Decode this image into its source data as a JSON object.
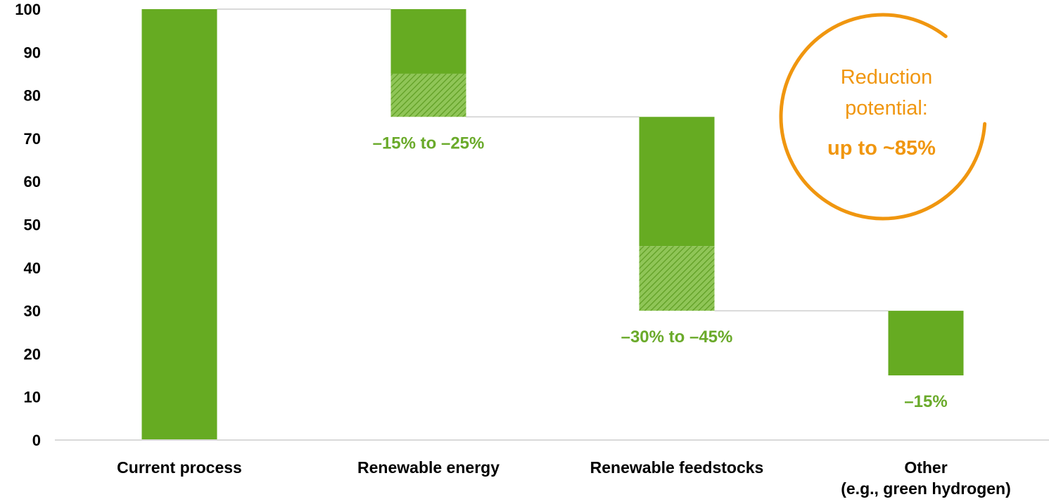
{
  "chart_data": {
    "type": "waterfall",
    "categories": [
      [
        "Current process"
      ],
      [
        "Renewable energy"
      ],
      [
        "Renewable feedstocks"
      ],
      [
        "Other",
        "(e.g., green hydrogen)"
      ]
    ],
    "bars": [
      {
        "base": 0,
        "top": 100,
        "solid_from": 0,
        "hatched_from": null,
        "hatched_to": null
      },
      {
        "base": 75,
        "top": 100,
        "solid_from": 85,
        "hatched_from": 75,
        "hatched_to": 85
      },
      {
        "base": 30,
        "top": 75,
        "solid_from": 45,
        "hatched_from": 30,
        "hatched_to": 45
      },
      {
        "base": 15,
        "top": 30,
        "solid_from": 15,
        "hatched_from": null,
        "hatched_to": null
      }
    ],
    "data_labels": [
      "",
      "–15% to –25%",
      "–30% to –45%",
      "–15%"
    ],
    "yticks": [
      0,
      10,
      20,
      30,
      40,
      50,
      60,
      70,
      80,
      90,
      100
    ],
    "ylim": [
      0,
      100
    ],
    "grid": false,
    "legend": "none",
    "callout": {
      "line1": "Reduction",
      "line2": "potential:",
      "line3": "up to ~85%"
    },
    "colors": {
      "bar": "#66ab22",
      "hatch_bg": "#8fc557",
      "hatch_line": "#5e9d22",
      "connector": "#d9d9d9",
      "axis": "#d9d9d9",
      "label_green": "#6aaa2a",
      "callout": "#f0960f"
    }
  }
}
